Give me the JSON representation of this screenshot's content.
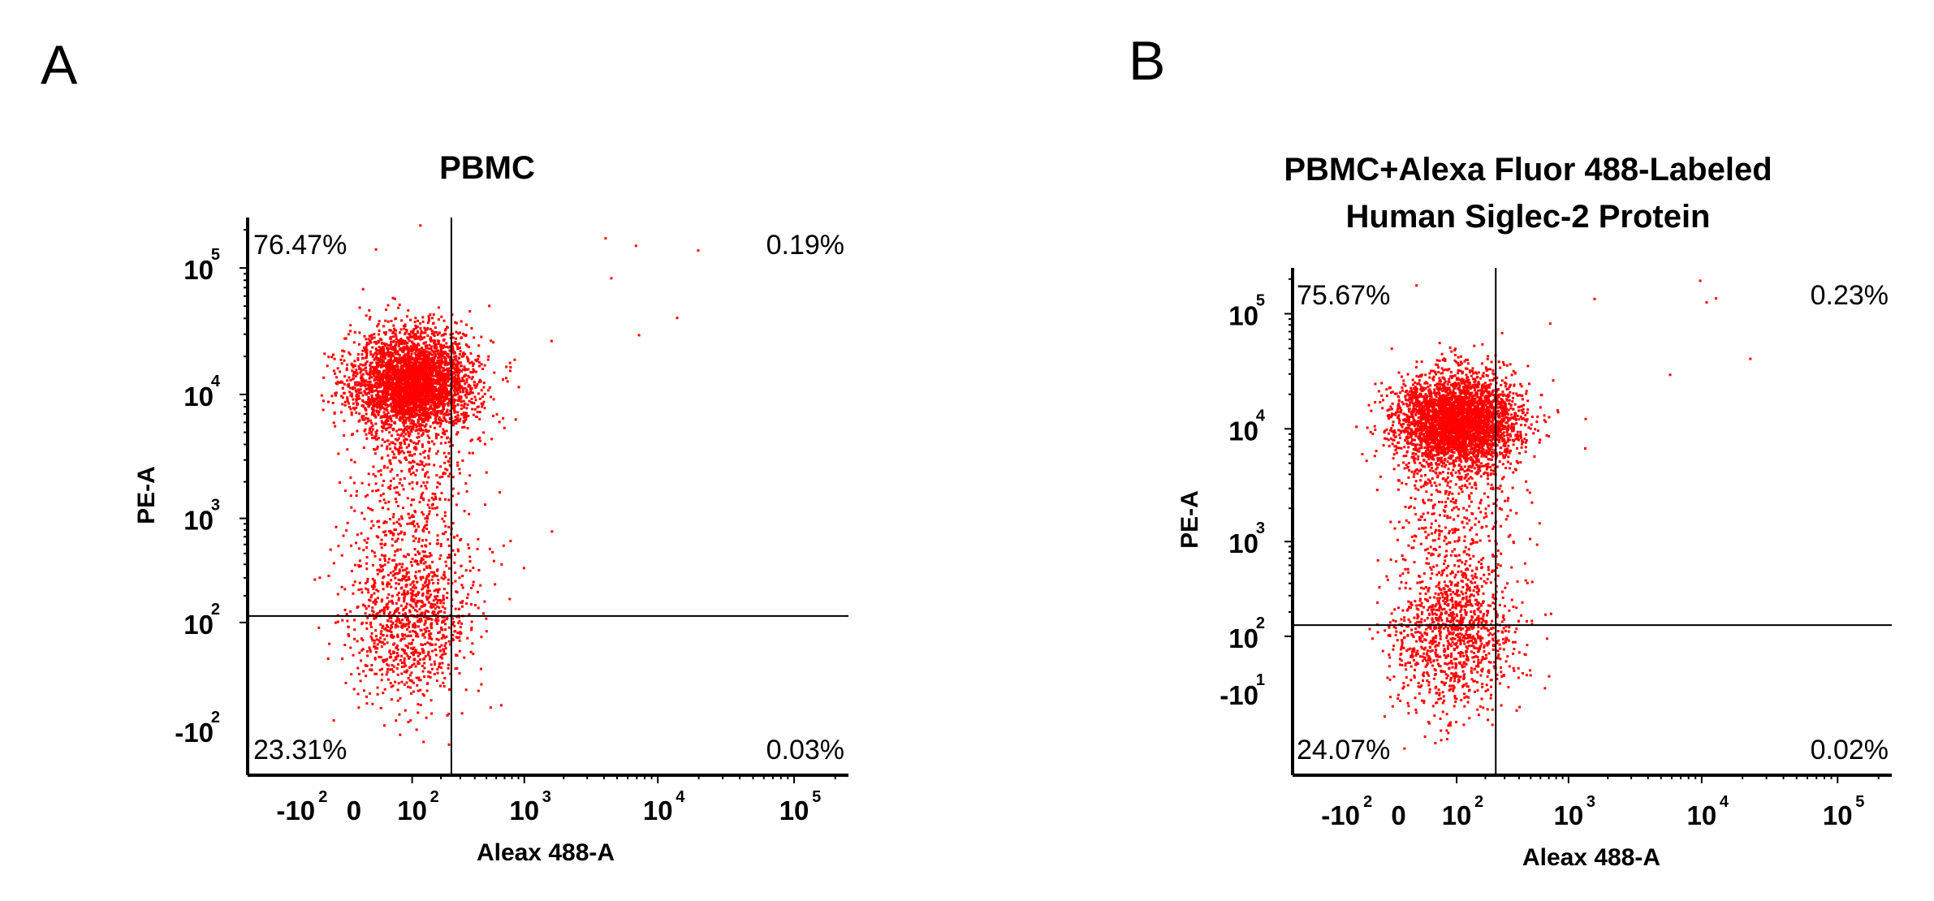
{
  "colors": {
    "dots": "#ff0000",
    "axes": "#000000",
    "gates": "#000000"
  },
  "chart_data": [
    {
      "type": "scatter",
      "panel": "A",
      "title": [
        "PBMC"
      ],
      "xlabel": "Aleax 488-A",
      "ylabel": "PE-A",
      "x_scale": "biexponential (log)",
      "y_scale": "biexponential (log)",
      "xlim": [
        -300,
        250000
      ],
      "ylim": [
        -300,
        250000
      ],
      "x_ticks": [
        {
          "base": "-10",
          "exp": "2",
          "value": -100
        },
        {
          "base": "0",
          "exp": "",
          "value": 0
        },
        {
          "base": "10",
          "exp": "2",
          "value": 100
        },
        {
          "base": "10",
          "exp": "3",
          "value": 1000
        },
        {
          "base": "10",
          "exp": "4",
          "value": 10000
        },
        {
          "base": "10",
          "exp": "5",
          "value": 100000
        }
      ],
      "y_ticks": [
        {
          "base": "-10",
          "exp": "2",
          "value": -100
        },
        {
          "base": "10",
          "exp": "2",
          "value": 100
        },
        {
          "base": "10",
          "exp": "3",
          "value": 1000
        },
        {
          "base": "10",
          "exp": "4",
          "value": 10000
        },
        {
          "base": "10",
          "exp": "5",
          "value": 100000
        }
      ],
      "gate": {
        "x": 250,
        "y": 120
      },
      "quadrants": {
        "UL": "76.47%",
        "UR": "0.19%",
        "LL": "23.31%",
        "LR": "0.03%"
      },
      "populations": [
        {
          "name": "upper",
          "x_center": 100,
          "y_center": 13000,
          "fraction": 0.7647
        },
        {
          "name": "lower",
          "x_center": 90,
          "y_center": 100,
          "fraction": 0.2331
        }
      ]
    },
    {
      "type": "scatter",
      "panel": "B",
      "title": [
        "PBMC+Alexa Fluor 488-Labeled",
        "Human Siglec-2 Protein"
      ],
      "xlabel": "Aleax 488-A",
      "ylabel": "PE-A",
      "x_scale": "biexponential (log)",
      "y_scale": "biexponential (log)",
      "xlim": [
        -300,
        250000
      ],
      "ylim": [
        -300,
        250000
      ],
      "x_ticks": [
        {
          "base": "-10",
          "exp": "2",
          "value": -100
        },
        {
          "base": "0",
          "exp": "",
          "value": 0
        },
        {
          "base": "10",
          "exp": "2",
          "value": 100
        },
        {
          "base": "10",
          "exp": "3",
          "value": 1000
        },
        {
          "base": "10",
          "exp": "4",
          "value": 10000
        },
        {
          "base": "10",
          "exp": "5",
          "value": 100000
        }
      ],
      "y_ticks": [
        {
          "base": "-10",
          "exp": "1",
          "value": -10
        },
        {
          "base": "10",
          "exp": "2",
          "value": 100
        },
        {
          "base": "10",
          "exp": "3",
          "value": 1000
        },
        {
          "base": "10",
          "exp": "4",
          "value": 10000
        },
        {
          "base": "10",
          "exp": "5",
          "value": 100000
        }
      ],
      "gate": {
        "x": 250,
        "y": 140
      },
      "quadrants": {
        "UL": "75.67%",
        "UR": "0.23%",
        "LL": "24.07%",
        "LR": "0.02%"
      },
      "populations": [
        {
          "name": "upper",
          "x_center": 100,
          "y_center": 12000,
          "fraction": 0.7567
        },
        {
          "name": "lower",
          "x_center": 90,
          "y_center": 90,
          "fraction": 0.2407
        }
      ]
    }
  ]
}
